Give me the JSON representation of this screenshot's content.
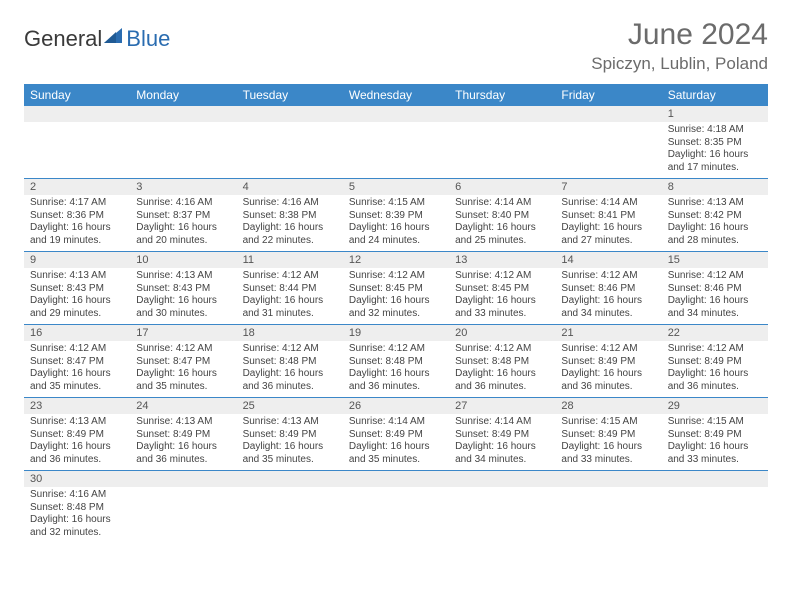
{
  "logo": {
    "text1": "General",
    "text2": "Blue",
    "color1": "#3a3a3a",
    "color2": "#2a6cb0"
  },
  "title": {
    "monthYear": "June 2024",
    "location": "Spiczyn, Lublin, Poland"
  },
  "colors": {
    "headerBg": "#3b87c8",
    "headerFg": "#ffffff",
    "dateBarBg": "#eeeeee",
    "borderColor": "#3b87c8",
    "bodyText": "#444444",
    "titleText": "#6b6b6b"
  },
  "dayNames": [
    "Sunday",
    "Monday",
    "Tuesday",
    "Wednesday",
    "Thursday",
    "Friday",
    "Saturday"
  ],
  "weeks": [
    [
      null,
      null,
      null,
      null,
      null,
      null,
      {
        "d": "1",
        "sr": "4:18 AM",
        "ss": "8:35 PM",
        "dl": "16 hours and 17 minutes."
      }
    ],
    [
      {
        "d": "2",
        "sr": "4:17 AM",
        "ss": "8:36 PM",
        "dl": "16 hours and 19 minutes."
      },
      {
        "d": "3",
        "sr": "4:16 AM",
        "ss": "8:37 PM",
        "dl": "16 hours and 20 minutes."
      },
      {
        "d": "4",
        "sr": "4:16 AM",
        "ss": "8:38 PM",
        "dl": "16 hours and 22 minutes."
      },
      {
        "d": "5",
        "sr": "4:15 AM",
        "ss": "8:39 PM",
        "dl": "16 hours and 24 minutes."
      },
      {
        "d": "6",
        "sr": "4:14 AM",
        "ss": "8:40 PM",
        "dl": "16 hours and 25 minutes."
      },
      {
        "d": "7",
        "sr": "4:14 AM",
        "ss": "8:41 PM",
        "dl": "16 hours and 27 minutes."
      },
      {
        "d": "8",
        "sr": "4:13 AM",
        "ss": "8:42 PM",
        "dl": "16 hours and 28 minutes."
      }
    ],
    [
      {
        "d": "9",
        "sr": "4:13 AM",
        "ss": "8:43 PM",
        "dl": "16 hours and 29 minutes."
      },
      {
        "d": "10",
        "sr": "4:13 AM",
        "ss": "8:43 PM",
        "dl": "16 hours and 30 minutes."
      },
      {
        "d": "11",
        "sr": "4:12 AM",
        "ss": "8:44 PM",
        "dl": "16 hours and 31 minutes."
      },
      {
        "d": "12",
        "sr": "4:12 AM",
        "ss": "8:45 PM",
        "dl": "16 hours and 32 minutes."
      },
      {
        "d": "13",
        "sr": "4:12 AM",
        "ss": "8:45 PM",
        "dl": "16 hours and 33 minutes."
      },
      {
        "d": "14",
        "sr": "4:12 AM",
        "ss": "8:46 PM",
        "dl": "16 hours and 34 minutes."
      },
      {
        "d": "15",
        "sr": "4:12 AM",
        "ss": "8:46 PM",
        "dl": "16 hours and 34 minutes."
      }
    ],
    [
      {
        "d": "16",
        "sr": "4:12 AM",
        "ss": "8:47 PM",
        "dl": "16 hours and 35 minutes."
      },
      {
        "d": "17",
        "sr": "4:12 AM",
        "ss": "8:47 PM",
        "dl": "16 hours and 35 minutes."
      },
      {
        "d": "18",
        "sr": "4:12 AM",
        "ss": "8:48 PM",
        "dl": "16 hours and 36 minutes."
      },
      {
        "d": "19",
        "sr": "4:12 AM",
        "ss": "8:48 PM",
        "dl": "16 hours and 36 minutes."
      },
      {
        "d": "20",
        "sr": "4:12 AM",
        "ss": "8:48 PM",
        "dl": "16 hours and 36 minutes."
      },
      {
        "d": "21",
        "sr": "4:12 AM",
        "ss": "8:49 PM",
        "dl": "16 hours and 36 minutes."
      },
      {
        "d": "22",
        "sr": "4:12 AM",
        "ss": "8:49 PM",
        "dl": "16 hours and 36 minutes."
      }
    ],
    [
      {
        "d": "23",
        "sr": "4:13 AM",
        "ss": "8:49 PM",
        "dl": "16 hours and 36 minutes."
      },
      {
        "d": "24",
        "sr": "4:13 AM",
        "ss": "8:49 PM",
        "dl": "16 hours and 36 minutes."
      },
      {
        "d": "25",
        "sr": "4:13 AM",
        "ss": "8:49 PM",
        "dl": "16 hours and 35 minutes."
      },
      {
        "d": "26",
        "sr": "4:14 AM",
        "ss": "8:49 PM",
        "dl": "16 hours and 35 minutes."
      },
      {
        "d": "27",
        "sr": "4:14 AM",
        "ss": "8:49 PM",
        "dl": "16 hours and 34 minutes."
      },
      {
        "d": "28",
        "sr": "4:15 AM",
        "ss": "8:49 PM",
        "dl": "16 hours and 33 minutes."
      },
      {
        "d": "29",
        "sr": "4:15 AM",
        "ss": "8:49 PM",
        "dl": "16 hours and 33 minutes."
      }
    ],
    [
      {
        "d": "30",
        "sr": "4:16 AM",
        "ss": "8:48 PM",
        "dl": "16 hours and 32 minutes."
      },
      null,
      null,
      null,
      null,
      null,
      null
    ]
  ],
  "labels": {
    "sunrise": "Sunrise: ",
    "sunset": "Sunset: ",
    "daylight": "Daylight: "
  }
}
